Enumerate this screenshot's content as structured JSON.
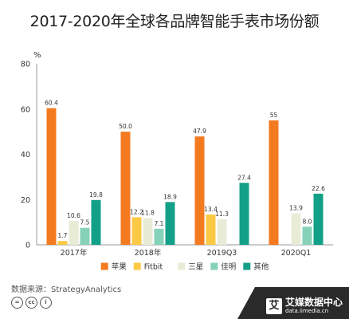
{
  "chart_data": {
    "type": "bar",
    "title": "2017-2020年全球各品牌智能手表市场份额",
    "ylabel": "%",
    "xlabel": "",
    "ylim": [
      0,
      80
    ],
    "yticks": [
      "0",
      "20",
      "40",
      "60",
      "80"
    ],
    "grid": false,
    "legend_position": "bottom",
    "categories": [
      "2017年",
      "2018年",
      "2019Q3",
      "2020Q1"
    ],
    "series": [
      {
        "name": "苹果",
        "color": "#f47a20",
        "values": [
          60.4,
          50.0,
          47.9,
          55
        ],
        "labels": [
          "60.4",
          "50.0",
          "47.9",
          "55"
        ]
      },
      {
        "name": "Fitbit",
        "color": "#fcc945",
        "values": [
          1.7,
          12.2,
          13.4,
          null
        ],
        "labels": [
          "1.7",
          "12.2",
          "13.4",
          null
        ]
      },
      {
        "name": "三星",
        "color": "#e8ecd6",
        "values": [
          10.6,
          11.8,
          11.3,
          13.9
        ],
        "labels": [
          "10.6",
          "11.8",
          "11.3",
          "13.9"
        ]
      },
      {
        "name": "佳明",
        "color": "#86d2b8",
        "values": [
          7.5,
          7.1,
          null,
          8.0
        ],
        "labels": [
          "7.5",
          "7.1",
          null,
          "8.0"
        ]
      },
      {
        "name": "其他",
        "color": "#13a088",
        "values": [
          19.8,
          18.9,
          27.4,
          22.6
        ],
        "labels": [
          "19.8",
          "18.9",
          "27.4",
          "22.6"
        ]
      }
    ]
  },
  "source": "数据来源：StrategyAnalytics",
  "license_icons": [
    "cc-equal-icon",
    "cc-icon",
    "cc-person-icon"
  ],
  "watermark": {
    "logo_char": "艾",
    "name": "艾媒数据中心",
    "url": "data.iimedia.cn"
  }
}
